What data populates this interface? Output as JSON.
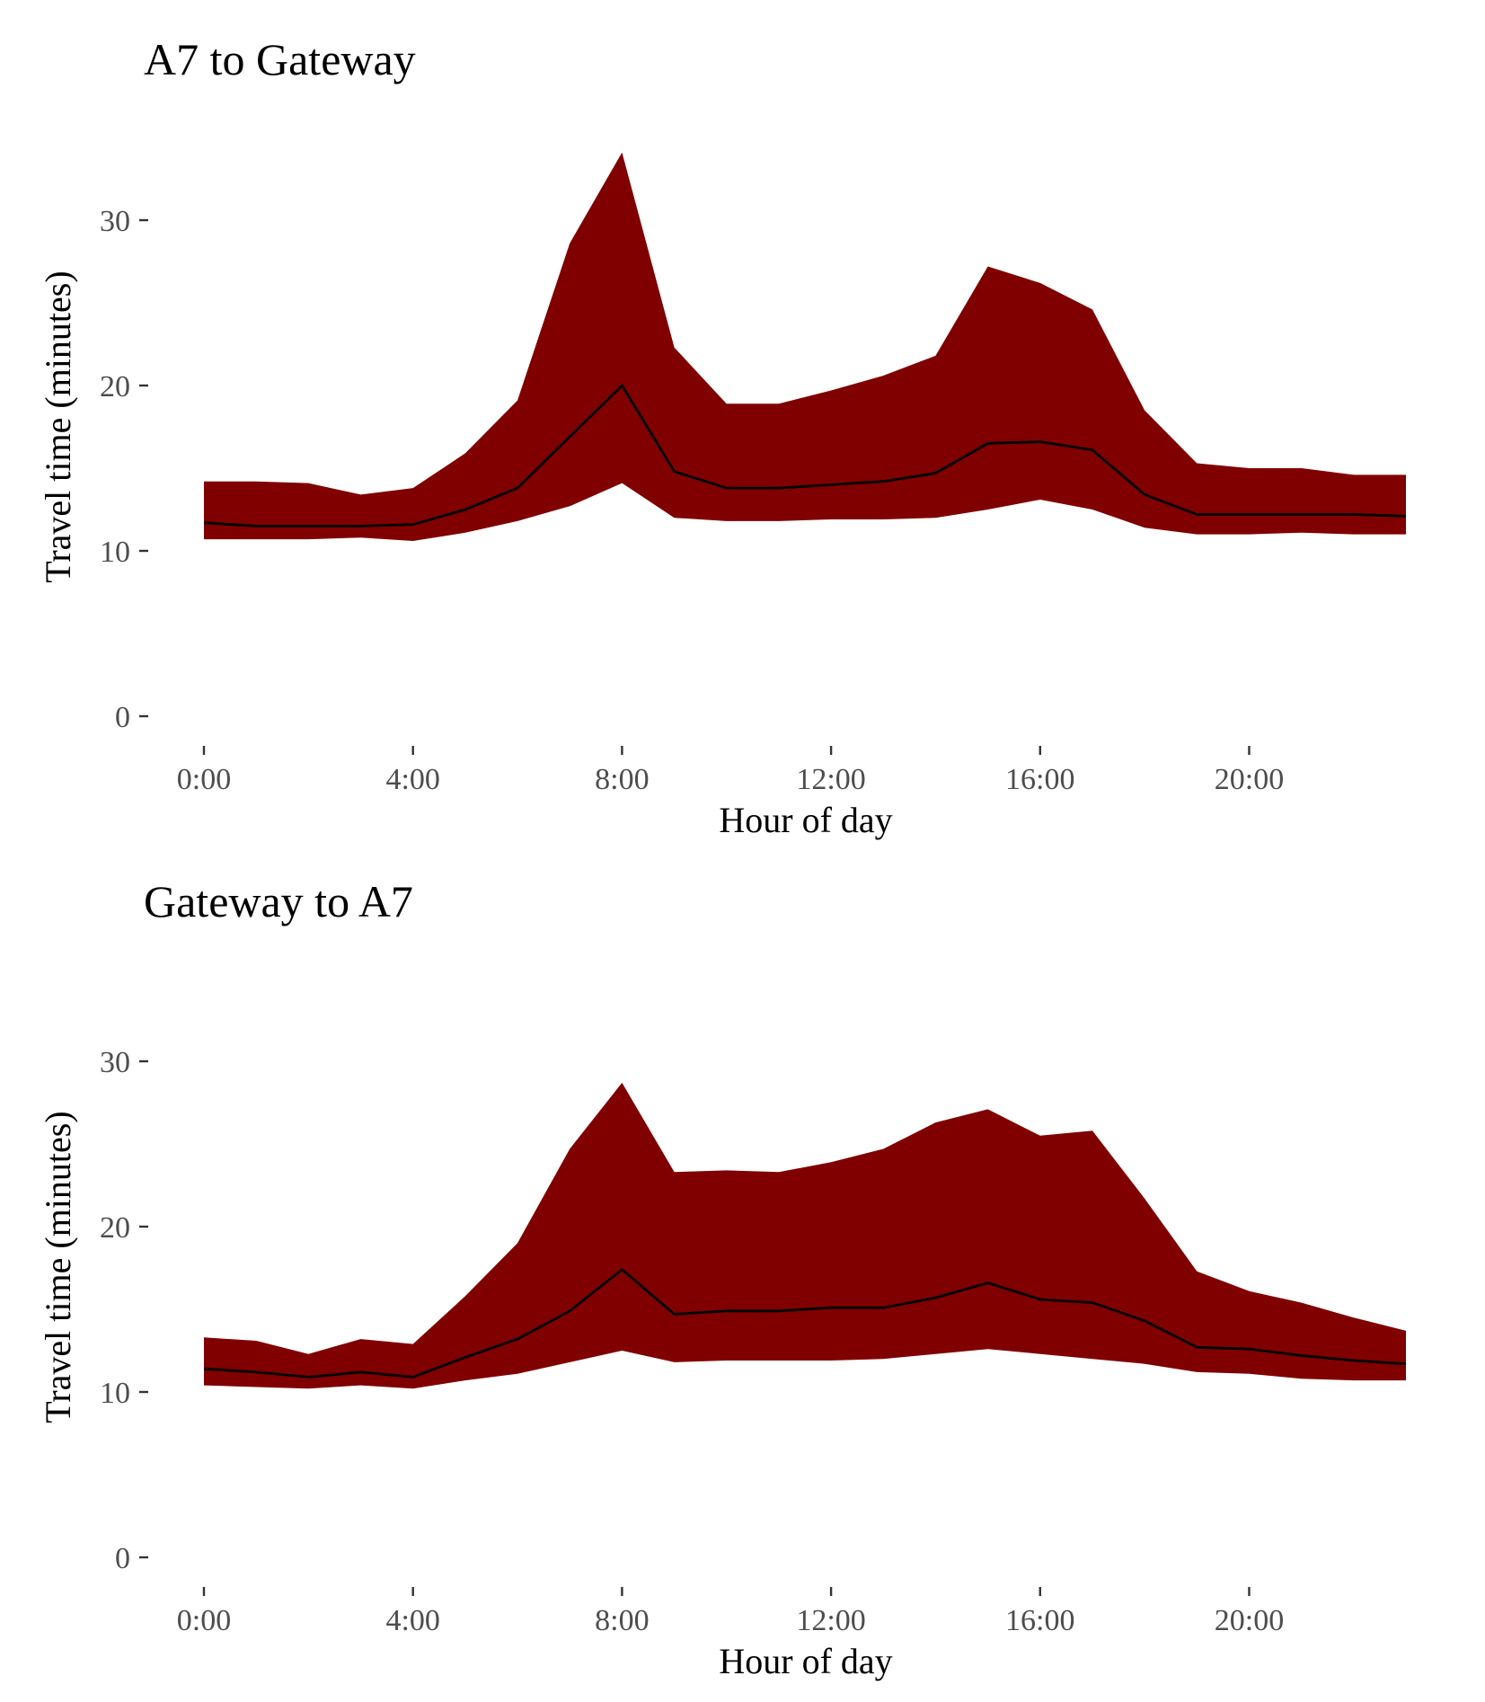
{
  "colors": {
    "band": "#800000",
    "line": "#000000",
    "tick_text": "#4d4d4d"
  },
  "chart_data": [
    {
      "type": "area",
      "title": "A7 to Gateway",
      "xlabel": "Hour of day",
      "ylabel": "Travel time (minutes)",
      "xlim": [
        0,
        23
      ],
      "ylim": [
        0,
        34
      ],
      "x_ticks": [
        0,
        4,
        8,
        12,
        16,
        20
      ],
      "x_tick_labels": [
        "0:00",
        "4:00",
        "8:00",
        "12:00",
        "16:00",
        "20:00"
      ],
      "y_ticks": [
        0,
        10,
        20,
        30
      ],
      "y_tick_labels": [
        "0",
        "10",
        "20",
        "30"
      ],
      "grid": false,
      "x": [
        0,
        1,
        2,
        3,
        4,
        5,
        6,
        7,
        8,
        9,
        10,
        11,
        12,
        13,
        14,
        15,
        16,
        17,
        18,
        19,
        20,
        21,
        22,
        23
      ],
      "band_upper": [
        14.2,
        14.2,
        14.1,
        13.4,
        13.8,
        15.9,
        19.1,
        28.6,
        34.1,
        22.3,
        18.9,
        18.9,
        19.7,
        20.6,
        21.8,
        27.2,
        26.2,
        24.6,
        18.5,
        15.3,
        15.0,
        15.0,
        14.6,
        14.6
      ],
      "band_lower": [
        10.7,
        10.7,
        10.7,
        10.8,
        10.6,
        11.1,
        11.8,
        12.7,
        14.1,
        12.0,
        11.8,
        11.8,
        11.9,
        11.9,
        12.0,
        12.5,
        13.1,
        12.5,
        11.4,
        11.0,
        11.0,
        11.1,
        11.0,
        11.0
      ],
      "median": [
        11.7,
        11.5,
        11.5,
        11.5,
        11.6,
        12.5,
        13.8,
        16.9,
        20.0,
        14.8,
        13.8,
        13.8,
        14.0,
        14.2,
        14.7,
        16.5,
        16.6,
        16.1,
        13.4,
        12.2,
        12.2,
        12.2,
        12.2,
        12.1
      ]
    },
    {
      "type": "area",
      "title": "Gateway to A7",
      "xlabel": "Hour of day",
      "ylabel": "Travel time (minutes)",
      "xlim": [
        0,
        23
      ],
      "ylim": [
        0,
        34
      ],
      "x_ticks": [
        0,
        4,
        8,
        12,
        16,
        20
      ],
      "x_tick_labels": [
        "0:00",
        "4:00",
        "8:00",
        "12:00",
        "16:00",
        "20:00"
      ],
      "y_ticks": [
        0,
        10,
        20,
        30
      ],
      "y_tick_labels": [
        "0",
        "10",
        "20",
        "30"
      ],
      "grid": false,
      "x": [
        0,
        1,
        2,
        3,
        4,
        5,
        6,
        7,
        8,
        9,
        10,
        11,
        12,
        13,
        14,
        15,
        16,
        17,
        18,
        19,
        20,
        21,
        22,
        23
      ],
      "band_upper": [
        13.3,
        13.1,
        12.3,
        13.2,
        12.9,
        15.8,
        19.0,
        24.7,
        28.7,
        23.3,
        23.4,
        23.3,
        23.9,
        24.7,
        26.3,
        27.1,
        25.5,
        25.8,
        21.7,
        17.3,
        16.1,
        15.4,
        14.5,
        13.7
      ],
      "band_lower": [
        10.4,
        10.3,
        10.2,
        10.4,
        10.2,
        10.7,
        11.1,
        11.8,
        12.5,
        11.8,
        11.9,
        11.9,
        11.9,
        12.0,
        12.3,
        12.6,
        12.3,
        12.0,
        11.7,
        11.2,
        11.1,
        10.8,
        10.7,
        10.7
      ],
      "median": [
        11.4,
        11.2,
        10.9,
        11.2,
        10.9,
        12.1,
        13.2,
        14.9,
        17.4,
        14.7,
        14.9,
        14.9,
        15.1,
        15.1,
        15.7,
        16.6,
        15.6,
        15.4,
        14.3,
        12.7,
        12.6,
        12.2,
        11.9,
        11.7
      ]
    }
  ]
}
